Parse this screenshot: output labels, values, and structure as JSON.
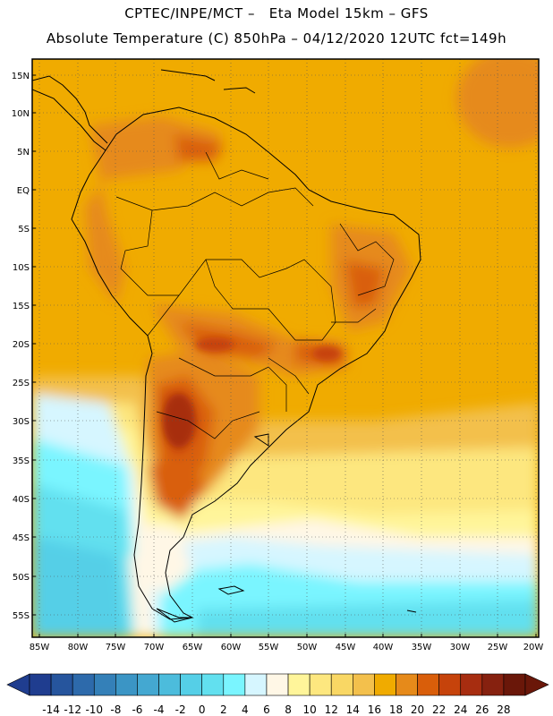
{
  "header": {
    "line1": "CPTEC/INPE/MCT –   Eta Model 15km – GFS",
    "line2": "Absolute Temperature (C) 850hPa – 04/12/2020 12UTC fct=149h"
  },
  "axes": {
    "lat_labels": [
      "15N",
      "10N",
      "5N",
      "EQ",
      "5S",
      "10S",
      "15S",
      "20S",
      "25S",
      "30S",
      "35S",
      "40S",
      "45S",
      "50S",
      "55S"
    ],
    "lon_labels": [
      "85W",
      "80W",
      "75W",
      "70W",
      "65W",
      "60W",
      "55W",
      "50W",
      "45W",
      "40W",
      "35W",
      "30W",
      "25W",
      "20W"
    ]
  },
  "colorbar": {
    "labels": [
      "-14",
      "-12",
      "-10",
      "-8",
      "-6",
      "-4",
      "-2",
      "0",
      "2",
      "4",
      "6",
      "8",
      "10",
      "12",
      "14",
      "16",
      "18",
      "20",
      "22",
      "24",
      "26",
      "28"
    ],
    "colors": [
      "#1f3d8f",
      "#26559d",
      "#2d6aab",
      "#3480b8",
      "#3b95c5",
      "#44a8d1",
      "#4cbcdc",
      "#55cfe7",
      "#62e0ef",
      "#7af5ff",
      "#d6f6ff",
      "#fff7e6",
      "#fff59a",
      "#fde77f",
      "#f9d764",
      "#f3c04c",
      "#f0ab00",
      "#e68a1a",
      "#d95e0a",
      "#c6430b",
      "#a72d10",
      "#86210f",
      "#6a1709"
    ]
  }
}
